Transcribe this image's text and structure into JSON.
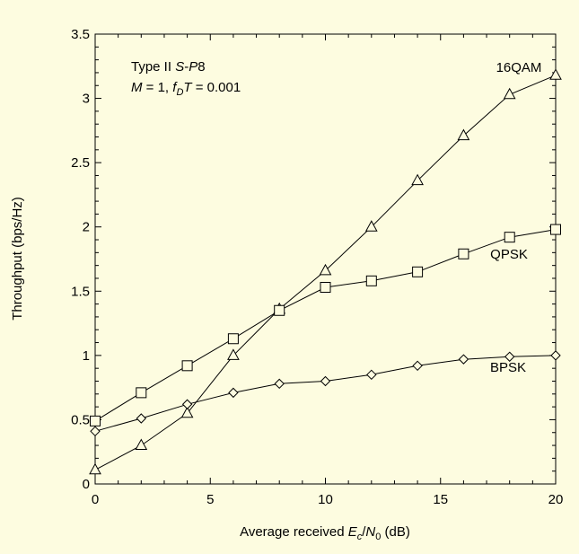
{
  "chart_data": {
    "type": "line",
    "xlabel": {
      "prefix": "Average received ",
      "E": "E",
      "c": "c",
      "slash": "/",
      "N": "N",
      "zero": "0",
      "unit": " (dB)"
    },
    "ylabel": "Throughput (bps/Hz)",
    "xlim": [
      0,
      20
    ],
    "ylim": [
      0,
      3.5
    ],
    "xticks": [
      "0",
      "5",
      "10",
      "15",
      "20"
    ],
    "yticks": [
      "0",
      "0.5",
      "1",
      "1.5",
      "2",
      "2.5",
      "3",
      "3.5"
    ],
    "grid": false,
    "annotation": {
      "line1": {
        "prefix": "Type II ",
        "S": "S",
        "dash": "-",
        "P": "P",
        "num": "8"
      },
      "line2": {
        "M": "M",
        "eq1": " = 1, ",
        "f": "f",
        "D": "D",
        "T": "T",
        "eq2": " = 0.001"
      }
    },
    "series": [
      {
        "name": "16QAM",
        "marker": "triangle",
        "x": [
          0,
          2,
          4,
          6,
          8,
          10,
          12,
          14,
          16,
          18,
          20
        ],
        "y": [
          0.11,
          0.3,
          0.55,
          1.0,
          1.36,
          1.66,
          2.0,
          2.36,
          2.71,
          3.03,
          3.18
        ]
      },
      {
        "name": "QPSK",
        "marker": "square",
        "x": [
          0,
          2,
          4,
          6,
          8,
          10,
          12,
          14,
          16,
          18,
          20
        ],
        "y": [
          0.49,
          0.71,
          0.92,
          1.13,
          1.35,
          1.53,
          1.58,
          1.65,
          1.79,
          1.92,
          1.98
        ]
      },
      {
        "name": "BPSK",
        "marker": "diamond",
        "x": [
          0,
          2,
          4,
          6,
          8,
          10,
          12,
          14,
          16,
          18,
          20
        ],
        "y": [
          0.41,
          0.51,
          0.62,
          0.71,
          0.78,
          0.8,
          0.85,
          0.92,
          0.97,
          0.99,
          1.0
        ]
      }
    ]
  }
}
